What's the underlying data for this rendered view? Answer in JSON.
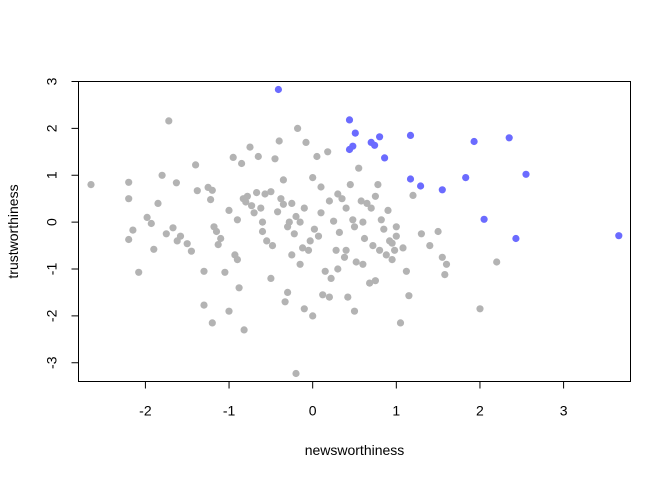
{
  "chart_data": {
    "type": "scatter",
    "title": "",
    "xlabel": "newsworthiness",
    "ylabel": "trustworthiness",
    "xlim": [
      -2.8,
      3.8
    ],
    "ylim": [
      -3.4,
      3.0
    ],
    "xticks": [
      -2,
      -1,
      0,
      1,
      2,
      3
    ],
    "yticks": [
      -3,
      -2,
      -1,
      0,
      1,
      2,
      3
    ],
    "grid": false,
    "legend": "none",
    "colors": {
      "unselected": "#b3b3b3",
      "selected": "#6b6bff"
    },
    "series": [
      {
        "group": "unselected",
        "points": [
          [
            -2.65,
            0.8
          ],
          [
            -2.2,
            0.85
          ],
          [
            -2.2,
            0.5
          ],
          [
            -2.2,
            -0.37
          ],
          [
            -2.15,
            -0.17
          ],
          [
            -2.08,
            -1.07
          ],
          [
            -1.98,
            0.1
          ],
          [
            -1.93,
            -0.03
          ],
          [
            -1.9,
            -0.58
          ],
          [
            -1.85,
            0.4
          ],
          [
            -1.8,
            1.0
          ],
          [
            -1.75,
            -0.25
          ],
          [
            -1.72,
            2.16
          ],
          [
            -1.67,
            -0.12
          ],
          [
            -1.63,
            0.84
          ],
          [
            -1.62,
            -0.4
          ],
          [
            -1.58,
            -0.3
          ],
          [
            -1.5,
            -0.46
          ],
          [
            -1.45,
            -0.62
          ],
          [
            -1.4,
            1.22
          ],
          [
            -1.38,
            0.67
          ],
          [
            -1.3,
            -1.05
          ],
          [
            -1.25,
            0.74
          ],
          [
            -1.22,
            0.48
          ],
          [
            -1.2,
            0.68
          ],
          [
            -1.18,
            -0.1
          ],
          [
            -1.15,
            -0.2
          ],
          [
            -1.13,
            -0.48
          ],
          [
            -1.1,
            -0.35
          ],
          [
            -1.05,
            -1.07
          ],
          [
            -1.0,
            0.25
          ],
          [
            -0.95,
            1.38
          ],
          [
            -0.93,
            -0.7
          ],
          [
            -0.9,
            -0.8
          ],
          [
            -0.88,
            -1.4
          ],
          [
            -0.85,
            1.25
          ],
          [
            -0.83,
            0.5
          ],
          [
            -0.8,
            0.43
          ],
          [
            -0.78,
            0.55
          ],
          [
            -0.75,
            1.6
          ],
          [
            -0.73,
            0.35
          ],
          [
            -0.7,
            0.2
          ],
          [
            -0.67,
            0.63
          ],
          [
            -0.65,
            1.4
          ],
          [
            -0.62,
            0.3
          ],
          [
            -0.6,
            -0.2
          ],
          [
            -0.57,
            0.6
          ],
          [
            -0.55,
            -0.4
          ],
          [
            -0.5,
            0.65
          ],
          [
            -0.48,
            -0.5
          ],
          [
            -0.45,
            1.35
          ],
          [
            -0.42,
            0.22
          ],
          [
            -0.4,
            1.73
          ],
          [
            -0.38,
            0.5
          ],
          [
            -0.35,
            0.38
          ],
          [
            -0.33,
            -1.7
          ],
          [
            -0.3,
            -0.1
          ],
          [
            -0.28,
            0.0
          ],
          [
            -0.25,
            0.4
          ],
          [
            -0.22,
            -0.25
          ],
          [
            -0.2,
            0.12
          ],
          [
            -0.18,
            2.0
          ],
          [
            -0.15,
            -0.9
          ],
          [
            -0.12,
            -0.55
          ],
          [
            -0.1,
            0.3
          ],
          [
            -0.08,
            1.7
          ],
          [
            -0.05,
            -0.6
          ],
          [
            -0.03,
            -0.4
          ],
          [
            0.0,
            0.95
          ],
          [
            0.02,
            -0.15
          ],
          [
            0.05,
            1.4
          ],
          [
            0.07,
            -0.3
          ],
          [
            0.1,
            0.2
          ],
          [
            0.12,
            -1.55
          ],
          [
            0.15,
            -1.05
          ],
          [
            0.18,
            1.5
          ],
          [
            0.2,
            0.45
          ],
          [
            0.22,
            -1.2
          ],
          [
            0.25,
            0.02
          ],
          [
            0.28,
            -0.6
          ],
          [
            0.3,
            -1.0
          ],
          [
            0.32,
            -0.22
          ],
          [
            0.35,
            0.5
          ],
          [
            0.38,
            -0.75
          ],
          [
            0.4,
            -0.6
          ],
          [
            0.42,
            -1.6
          ],
          [
            0.45,
            0.8
          ],
          [
            0.48,
            0.05
          ],
          [
            0.5,
            -0.1
          ],
          [
            0.52,
            -0.85
          ],
          [
            0.55,
            1.15
          ],
          [
            0.58,
            0.45
          ],
          [
            0.6,
            0.0
          ],
          [
            0.62,
            -0.35
          ],
          [
            0.65,
            0.4
          ],
          [
            0.68,
            -1.3
          ],
          [
            0.7,
            0.3
          ],
          [
            0.72,
            -0.5
          ],
          [
            0.75,
            -1.25
          ],
          [
            0.78,
            0.8
          ],
          [
            0.8,
            -0.6
          ],
          [
            0.82,
            0.05
          ],
          [
            0.85,
            -0.15
          ],
          [
            0.88,
            -0.7
          ],
          [
            0.9,
            0.25
          ],
          [
            0.92,
            -0.4
          ],
          [
            0.95,
            -0.8
          ],
          [
            0.98,
            -0.6
          ],
          [
            1.0,
            -0.3
          ],
          [
            1.05,
            -2.15
          ],
          [
            1.08,
            -0.55
          ],
          [
            1.12,
            -1.05
          ],
          [
            1.15,
            -1.57
          ],
          [
            1.2,
            0.57
          ],
          [
            1.3,
            -0.25
          ],
          [
            1.4,
            -0.5
          ],
          [
            1.5,
            -0.2
          ],
          [
            1.55,
            -0.75
          ],
          [
            1.58,
            -1.12
          ],
          [
            1.6,
            -0.9
          ],
          [
            2.0,
            -1.85
          ],
          [
            2.2,
            -0.85
          ],
          [
            -0.2,
            -3.23
          ],
          [
            -0.82,
            -2.3
          ],
          [
            -1.3,
            -1.77
          ],
          [
            -1.2,
            -2.15
          ],
          [
            -1.0,
            -1.9
          ],
          [
            -0.3,
            -1.5
          ],
          [
            -0.1,
            -1.85
          ],
          [
            0.0,
            -2.0
          ],
          [
            0.2,
            -1.6
          ],
          [
            0.5,
            -1.9
          ],
          [
            -0.5,
            -1.2
          ],
          [
            -0.35,
            0.9
          ],
          [
            0.1,
            0.75
          ],
          [
            -0.15,
            0.0
          ],
          [
            0.3,
            0.6
          ],
          [
            -0.6,
            0.0
          ],
          [
            -0.9,
            0.05
          ],
          [
            0.4,
            0.3
          ],
          [
            -0.25,
            -0.7
          ],
          [
            0.6,
            -0.9
          ],
          [
            0.75,
            0.55
          ],
          [
            0.95,
            -0.45
          ],
          [
            1.0,
            -0.1
          ]
        ]
      },
      {
        "group": "selected",
        "points": [
          [
            -0.41,
            2.83
          ],
          [
            0.44,
            2.18
          ],
          [
            0.48,
            1.62
          ],
          [
            0.51,
            1.9
          ],
          [
            0.44,
            1.55
          ],
          [
            0.7,
            1.7
          ],
          [
            0.74,
            1.64
          ],
          [
            0.8,
            1.82
          ],
          [
            0.86,
            1.37
          ],
          [
            1.17,
            1.85
          ],
          [
            1.17,
            0.92
          ],
          [
            1.29,
            0.77
          ],
          [
            1.55,
            0.69
          ],
          [
            1.83,
            0.95
          ],
          [
            1.93,
            1.72
          ],
          [
            2.05,
            0.06
          ],
          [
            2.35,
            1.8
          ],
          [
            2.43,
            -0.35
          ],
          [
            2.55,
            1.02
          ],
          [
            3.66,
            -0.29
          ]
        ]
      }
    ]
  }
}
